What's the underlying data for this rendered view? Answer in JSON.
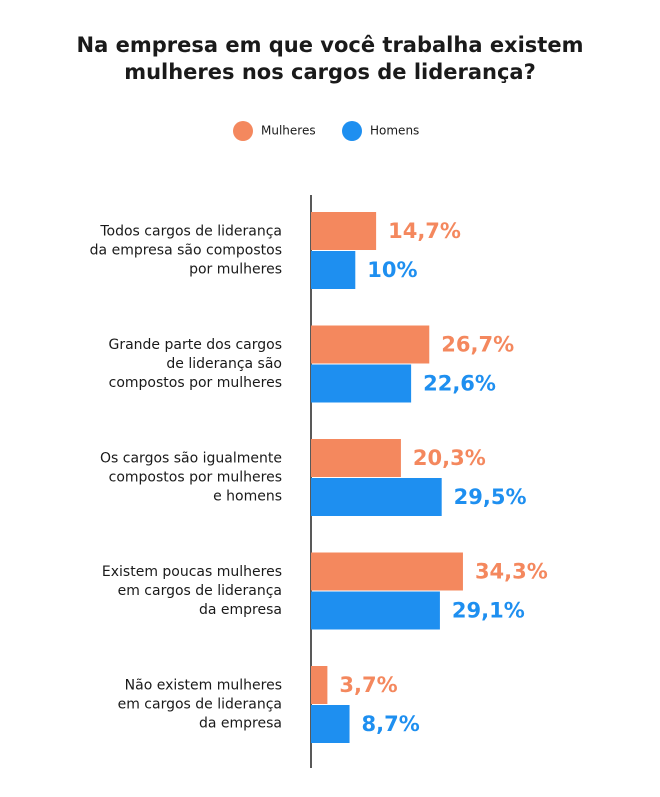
{
  "chart_data": {
    "type": "bar",
    "orientation": "horizontal",
    "title": [
      "Na empresa em que você trabalha existem",
      "mulheres nos cargos de liderança?"
    ],
    "categories": [
      [
        "Todos cargos de liderança",
        "da empresa são compostos",
        "por mulheres"
      ],
      [
        "Grande parte dos cargos",
        "de liderança são",
        "compostos por mulheres"
      ],
      [
        "Os cargos são igualmente",
        "compostos por mulheres",
        "e homens"
      ],
      [
        "Existem poucas mulheres",
        "em cargos de liderança",
        "da empresa"
      ],
      [
        "Não existem mulheres",
        "em cargos de liderança",
        "da empresa"
      ]
    ],
    "series": [
      {
        "name": "Mulheres",
        "color": "#f4885e",
        "values": [
          14.7,
          26.7,
          20.3,
          34.3,
          3.7
        ],
        "value_labels": [
          "14,7%",
          "26,7%",
          "20,3%",
          "34,3%",
          "3,7%"
        ]
      },
      {
        "name": "Homens",
        "color": "#1e8ff0",
        "values": [
          10,
          22.6,
          29.5,
          29.1,
          8.7
        ],
        "value_labels": [
          "10%",
          "22,6%",
          "29,5%",
          "29,1%",
          "8,7%"
        ]
      }
    ]
  }
}
